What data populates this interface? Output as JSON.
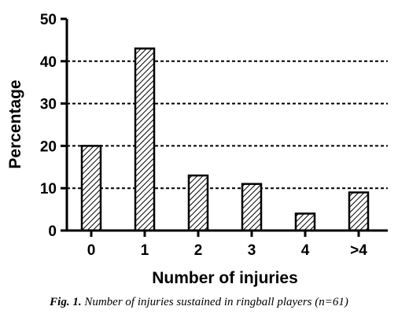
{
  "chart_data": {
    "type": "bar",
    "categories": [
      "0",
      "1",
      "2",
      "3",
      "4",
      ">4"
    ],
    "values": [
      20,
      43,
      13,
      11,
      4,
      9
    ],
    "xlabel": "Number of injuries",
    "ylabel": "Percentage",
    "ylim": [
      0,
      50
    ],
    "yticks": [
      0,
      10,
      20,
      30,
      40,
      50
    ],
    "grid": "dashed horizontal at 10, 20, 30, 40",
    "bar_fill": "diagonal hatch",
    "colors": {
      "bar_stroke": "#000000",
      "hatch": "#000000",
      "grid": "#000000"
    }
  },
  "caption": {
    "prefix": "Fig. 1.",
    "text": "Number of injuries sustained in ringball players (n=61)"
  }
}
